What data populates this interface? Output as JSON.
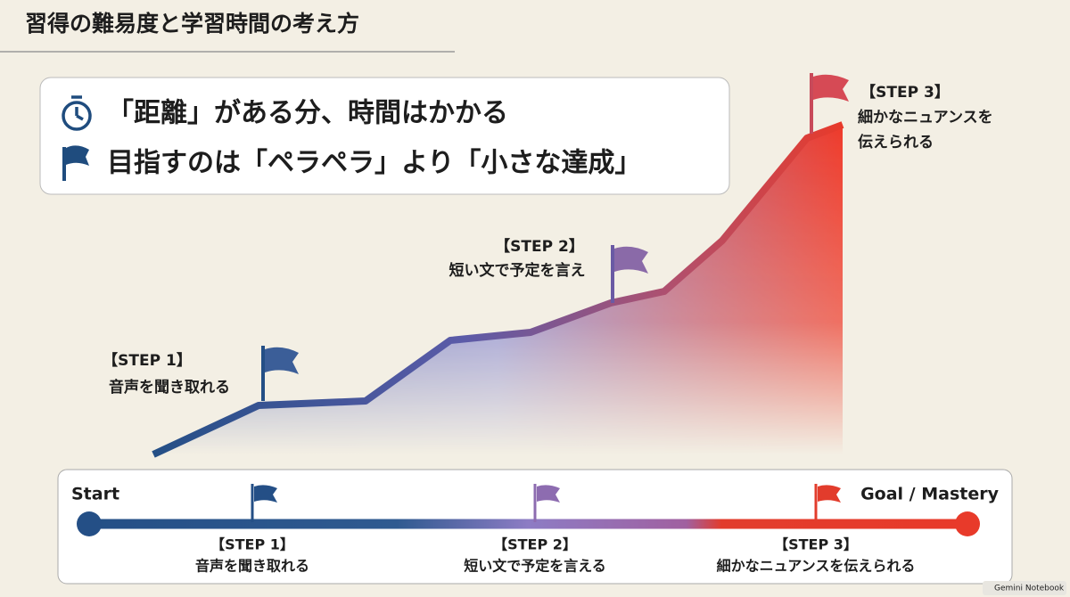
{
  "header": {
    "title": "習得の難易度と学習時間の考え方"
  },
  "callout": {
    "lines": [
      "「距離」がある分、時間はかかる",
      "目指すのは「ペラペラ」より「小さな達成」"
    ]
  },
  "curve_steps": [
    {
      "label": "【STEP 1】",
      "text": [
        "音声を聞き取れる"
      ]
    },
    {
      "label": "【STEP 2】",
      "text": [
        "短い文で予定を言え"
      ]
    },
    {
      "label": "【STEP 3】",
      "text": [
        "細かなニュアンスを",
        "伝えられる"
      ]
    }
  ],
  "timeline": {
    "start": "Start",
    "end": "Goal / Mastery",
    "steps": [
      {
        "label": "【STEP 1】",
        "text": "音声を聞き取れる"
      },
      {
        "label": "【STEP 2】",
        "text": "短い文で予定を言える"
      },
      {
        "label": "【STEP 3】",
        "text": "細かなニュアンスを伝えられる"
      }
    ]
  },
  "watermark": "Gemini Notebook"
}
